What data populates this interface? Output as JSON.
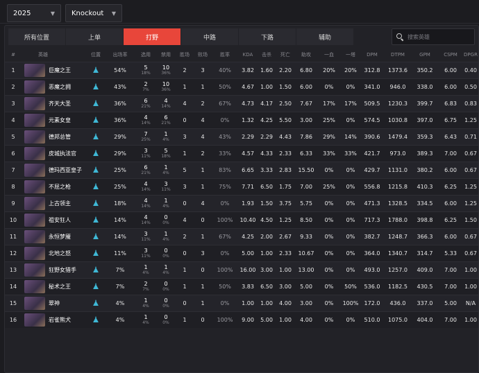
{
  "filters": {
    "year": "2025",
    "stage": "Knockout"
  },
  "tabs": [
    "所有位置",
    "上单",
    "打野",
    "中路",
    "下路",
    "辅助"
  ],
  "active_tab": 2,
  "search": {
    "placeholder": "搜索英雄"
  },
  "colors": {
    "accent": "#e8463a",
    "role_icon": "#3fb8d6",
    "background": "#1c1c20"
  },
  "columns": [
    "#",
    "英雄",
    "位置",
    "出场率",
    "选用",
    "禁用",
    "胜场",
    "败场",
    "胜率",
    "KDA",
    "击杀",
    "死亡",
    "助攻",
    "一血",
    "一塔",
    "DPM",
    "DTPM",
    "GPM",
    "CSPM",
    "DPGR"
  ],
  "rows": [
    {
      "rank": "1",
      "hero": "巨魔之王",
      "role_icon": "jungle-icon",
      "presence": "54%",
      "picks": "5",
      "picks_pct": "18%",
      "bans": "10",
      "bans_pct": "36%",
      "wins": "2",
      "losses": "3",
      "winrate": "40%",
      "kda": "3.82",
      "kills": "1.60",
      "deaths": "2.20",
      "assists": "6.80",
      "fb": "20%",
      "ft": "20%",
      "dpm": "312.8",
      "dtpm": "1373.6",
      "gpm": "350.2",
      "cspm": "6.00",
      "dpgr": "0.40"
    },
    {
      "rank": "2",
      "hero": "恶魔之拥",
      "role_icon": "jungle-icon",
      "presence": "43%",
      "picks": "2",
      "picks_pct": "7%",
      "bans": "10",
      "bans_pct": "36%",
      "wins": "1",
      "losses": "1",
      "winrate": "50%",
      "kda": "4.67",
      "kills": "1.00",
      "deaths": "1.50",
      "assists": "6.00",
      "fb": "0%",
      "ft": "0%",
      "dpm": "341.0",
      "dtpm": "946.0",
      "gpm": "338.0",
      "cspm": "6.00",
      "dpgr": "0.50"
    },
    {
      "rank": "3",
      "hero": "齐天大圣",
      "role_icon": "jungle-icon",
      "presence": "36%",
      "picks": "6",
      "picks_pct": "21%",
      "bans": "4",
      "bans_pct": "14%",
      "wins": "4",
      "losses": "2",
      "winrate": "67%",
      "kda": "4.73",
      "kills": "4.17",
      "deaths": "2.50",
      "assists": "7.67",
      "fb": "17%",
      "ft": "17%",
      "dpm": "509.5",
      "dtpm": "1230.3",
      "gpm": "399.7",
      "cspm": "6.83",
      "dpgr": "0.83"
    },
    {
      "rank": "4",
      "hero": "元素女皇",
      "role_icon": "jungle-icon",
      "presence": "36%",
      "picks": "4",
      "picks_pct": "14%",
      "bans": "6",
      "bans_pct": "21%",
      "wins": "0",
      "losses": "4",
      "winrate": "0%",
      "kda": "1.32",
      "kills": "4.25",
      "deaths": "5.50",
      "assists": "3.00",
      "fb": "25%",
      "ft": "0%",
      "dpm": "574.5",
      "dtpm": "1030.8",
      "gpm": "397.0",
      "cspm": "6.75",
      "dpgr": "1.25"
    },
    {
      "rank": "5",
      "hero": "德邦总管",
      "role_icon": "jungle-icon",
      "presence": "29%",
      "picks": "7",
      "picks_pct": "25%",
      "bans": "1",
      "bans_pct": "4%",
      "wins": "3",
      "losses": "4",
      "winrate": "43%",
      "kda": "2.29",
      "kills": "2.29",
      "deaths": "4.43",
      "assists": "7.86",
      "fb": "29%",
      "ft": "14%",
      "dpm": "390.6",
      "dtpm": "1479.4",
      "gpm": "359.3",
      "cspm": "6.43",
      "dpgr": "0.71"
    },
    {
      "rank": "6",
      "hero": "皮城执法官",
      "role_icon": "jungle-icon",
      "presence": "29%",
      "picks": "3",
      "picks_pct": "11%",
      "bans": "5",
      "bans_pct": "18%",
      "wins": "1",
      "losses": "2",
      "winrate": "33%",
      "kda": "4.57",
      "kills": "4.33",
      "deaths": "2.33",
      "assists": "6.33",
      "fb": "33%",
      "ft": "33%",
      "dpm": "421.7",
      "dtpm": "973.0",
      "gpm": "389.3",
      "cspm": "7.00",
      "dpgr": "0.67"
    },
    {
      "rank": "7",
      "hero": "德玛西亚皇子",
      "role_icon": "jungle-icon",
      "presence": "25%",
      "picks": "6",
      "picks_pct": "21%",
      "bans": "1",
      "bans_pct": "4%",
      "wins": "5",
      "losses": "1",
      "winrate": "83%",
      "kda": "6.65",
      "kills": "3.33",
      "deaths": "2.83",
      "assists": "15.50",
      "fb": "0%",
      "ft": "0%",
      "dpm": "429.7",
      "dtpm": "1131.0",
      "gpm": "380.2",
      "cspm": "6.00",
      "dpgr": "0.67"
    },
    {
      "rank": "8",
      "hero": "不屈之枪",
      "role_icon": "jungle-icon",
      "presence": "25%",
      "picks": "4",
      "picks_pct": "14%",
      "bans": "3",
      "bans_pct": "11%",
      "wins": "3",
      "losses": "1",
      "winrate": "75%",
      "kda": "7.71",
      "kills": "6.50",
      "deaths": "1.75",
      "assists": "7.00",
      "fb": "25%",
      "ft": "0%",
      "dpm": "556.8",
      "dtpm": "1215.8",
      "gpm": "410.3",
      "cspm": "6.25",
      "dpgr": "1.25"
    },
    {
      "rank": "9",
      "hero": "上古领主",
      "role_icon": "jungle-icon",
      "presence": "18%",
      "picks": "4",
      "picks_pct": "14%",
      "bans": "1",
      "bans_pct": "4%",
      "wins": "0",
      "losses": "4",
      "winrate": "0%",
      "kda": "1.93",
      "kills": "1.50",
      "deaths": "3.75",
      "assists": "5.75",
      "fb": "0%",
      "ft": "0%",
      "dpm": "471.3",
      "dtpm": "1328.5",
      "gpm": "334.5",
      "cspm": "6.00",
      "dpgr": "1.25"
    },
    {
      "rank": "10",
      "hero": "祖安狂人",
      "role_icon": "jungle-icon",
      "presence": "14%",
      "picks": "4",
      "picks_pct": "14%",
      "bans": "0",
      "bans_pct": "0%",
      "wins": "4",
      "losses": "0",
      "winrate": "100%",
      "kda": "10.40",
      "kills": "4.50",
      "deaths": "1.25",
      "assists": "8.50",
      "fb": "0%",
      "ft": "0%",
      "dpm": "717.3",
      "dtpm": "1788.0",
      "gpm": "398.8",
      "cspm": "6.25",
      "dpgr": "1.50"
    },
    {
      "rank": "11",
      "hero": "永恒梦魇",
      "role_icon": "jungle-icon",
      "presence": "14%",
      "picks": "3",
      "picks_pct": "11%",
      "bans": "1",
      "bans_pct": "4%",
      "wins": "2",
      "losses": "1",
      "winrate": "67%",
      "kda": "4.25",
      "kills": "2.00",
      "deaths": "2.67",
      "assists": "9.33",
      "fb": "0%",
      "ft": "0%",
      "dpm": "382.7",
      "dtpm": "1248.7",
      "gpm": "366.3",
      "cspm": "6.00",
      "dpgr": "0.67"
    },
    {
      "rank": "12",
      "hero": "北地之怒",
      "role_icon": "jungle-icon",
      "presence": "11%",
      "picks": "3",
      "picks_pct": "11%",
      "bans": "0",
      "bans_pct": "0%",
      "wins": "0",
      "losses": "3",
      "winrate": "0%",
      "kda": "5.00",
      "kills": "1.00",
      "deaths": "2.33",
      "assists": "10.67",
      "fb": "0%",
      "ft": "0%",
      "dpm": "364.0",
      "dtpm": "1340.7",
      "gpm": "314.7",
      "cspm": "5.33",
      "dpgr": "0.67"
    },
    {
      "rank": "13",
      "hero": "狂野女猎手",
      "role_icon": "jungle-icon",
      "presence": "7%",
      "picks": "1",
      "picks_pct": "4%",
      "bans": "1",
      "bans_pct": "4%",
      "wins": "1",
      "losses": "0",
      "winrate": "100%",
      "kda": "16.00",
      "kills": "3.00",
      "deaths": "1.00",
      "assists": "13.00",
      "fb": "0%",
      "ft": "0%",
      "dpm": "493.0",
      "dtpm": "1257.0",
      "gpm": "409.0",
      "cspm": "7.00",
      "dpgr": "1.00"
    },
    {
      "rank": "14",
      "hero": "秘术之王",
      "role_icon": "jungle-icon",
      "presence": "7%",
      "picks": "2",
      "picks_pct": "7%",
      "bans": "0",
      "bans_pct": "0%",
      "wins": "1",
      "losses": "1",
      "winrate": "50%",
      "kda": "3.83",
      "kills": "6.50",
      "deaths": "3.00",
      "assists": "5.00",
      "fb": "0%",
      "ft": "50%",
      "dpm": "536.0",
      "dtpm": "1182.5",
      "gpm": "430.5",
      "cspm": "7.00",
      "dpgr": "1.00"
    },
    {
      "rank": "15",
      "hero": "翠神",
      "role_icon": "jungle-icon",
      "presence": "4%",
      "picks": "1",
      "picks_pct": "4%",
      "bans": "0",
      "bans_pct": "0%",
      "wins": "0",
      "losses": "1",
      "winrate": "0%",
      "kda": "1.00",
      "kills": "1.00",
      "deaths": "4.00",
      "assists": "3.00",
      "fb": "0%",
      "ft": "100%",
      "dpm": "172.0",
      "dtpm": "436.0",
      "gpm": "337.0",
      "cspm": "5.00",
      "dpgr": "N/A"
    },
    {
      "rank": "16",
      "hero": "岩雀熊犬",
      "role_icon": "jungle-icon",
      "presence": "4%",
      "picks": "1",
      "picks_pct": "4%",
      "bans": "0",
      "bans_pct": "0%",
      "wins": "1",
      "losses": "0",
      "winrate": "100%",
      "kda": "9.00",
      "kills": "5.00",
      "deaths": "1.00",
      "assists": "4.00",
      "fb": "0%",
      "ft": "0%",
      "dpm": "510.0",
      "dtpm": "1075.0",
      "gpm": "404.0",
      "cspm": "7.00",
      "dpgr": "1.00"
    }
  ]
}
